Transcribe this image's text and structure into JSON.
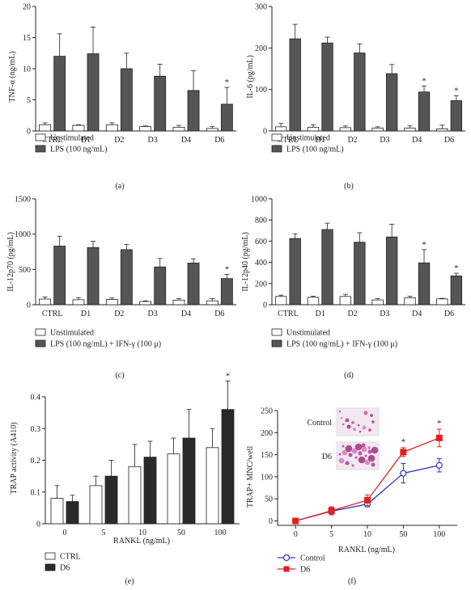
{
  "chart_data": [
    {
      "type": "bar",
      "panel_label": "(a)",
      "ylabel": "TNF-α (ng/mL)",
      "xlabel": "",
      "categories": [
        "CTRL",
        "D1",
        "D2",
        "D3",
        "D4",
        "D6"
      ],
      "ylim": [
        0,
        20
      ],
      "yticks": [
        0,
        5,
        10,
        15,
        20
      ],
      "series": [
        {
          "name": "Unstimulated",
          "values": [
            1.0,
            0.9,
            1.0,
            0.7,
            0.6,
            0.4
          ],
          "errors": [
            0.3,
            0.1,
            0.3,
            0.1,
            0.3,
            0.3
          ],
          "fill": "#ffffff"
        },
        {
          "name": "LPS (100 ng/mL)",
          "values": [
            12.0,
            12.4,
            10.0,
            8.8,
            6.5,
            4.3
          ],
          "errors": [
            3.6,
            4.3,
            2.5,
            1.9,
            3.2,
            2.7
          ],
          "fill": "#555555"
        }
      ],
      "annotations": [
        {
          "category": "D6",
          "series": 1,
          "text": "*"
        }
      ]
    },
    {
      "type": "bar",
      "panel_label": "(b)",
      "ylabel": "IL-6 (pg/mL)",
      "xlabel": "",
      "categories": [
        "CTRL",
        "D1",
        "D2",
        "D3",
        "D4",
        "D6"
      ],
      "ylim": [
        0,
        300
      ],
      "yticks": [
        0,
        100,
        200,
        300
      ],
      "series": [
        {
          "name": "Unstimulated",
          "values": [
            10,
            9,
            8,
            7,
            7,
            5
          ],
          "errors": [
            8,
            6,
            4,
            3,
            5,
            9
          ],
          "fill": "#ffffff"
        },
        {
          "name": "LPS (100 ng/mL)",
          "values": [
            222,
            212,
            188,
            138,
            94,
            73
          ],
          "errors": [
            35,
            14,
            22,
            22,
            14,
            12
          ],
          "fill": "#555555"
        }
      ],
      "annotations": [
        {
          "category": "D4",
          "series": 1,
          "text": "*"
        },
        {
          "category": "D6",
          "series": 1,
          "text": "*"
        }
      ]
    },
    {
      "type": "bar",
      "panel_label": "(c)",
      "ylabel": "IL-12p70 (pg/mL)",
      "xlabel": "",
      "categories": [
        "CTRL",
        "D1",
        "D2",
        "D3",
        "D4",
        "D6"
      ],
      "ylim": [
        0,
        1500
      ],
      "yticks": [
        0,
        500,
        1000,
        1500
      ],
      "series": [
        {
          "name": "Unstimulated",
          "values": [
            80,
            70,
            75,
            45,
            65,
            55
          ],
          "errors": [
            30,
            30,
            20,
            10,
            20,
            30
          ],
          "fill": "#ffffff"
        },
        {
          "name": "LPS (100 ng/mL) + IFN-γ (100 μ)",
          "values": [
            830,
            810,
            780,
            535,
            590,
            370
          ],
          "errors": [
            140,
            90,
            75,
            120,
            60,
            60
          ],
          "fill": "#555555"
        }
      ],
      "annotations": [
        {
          "category": "D6",
          "series": 1,
          "text": "*"
        }
      ]
    },
    {
      "type": "bar",
      "panel_label": "(d)",
      "ylabel": "IL-12p40 (pg/mL)",
      "xlabel": "",
      "categories": [
        "CTRL",
        "D1",
        "D2",
        "D3",
        "D4",
        "D6"
      ],
      "ylim": [
        0,
        1000
      ],
      "yticks": [
        0,
        200,
        400,
        600,
        800,
        1000
      ],
      "series": [
        {
          "name": "Unstimulated",
          "values": [
            78,
            70,
            78,
            45,
            65,
            55
          ],
          "errors": [
            12,
            10,
            20,
            12,
            15,
            5
          ],
          "fill": "#ffffff"
        },
        {
          "name": "LPS (100 ng/mL) + IFN-γ (100 μ)",
          "values": [
            625,
            710,
            590,
            640,
            395,
            272
          ],
          "errors": [
            45,
            60,
            90,
            120,
            125,
            25
          ],
          "fill": "#555555"
        }
      ],
      "annotations": [
        {
          "category": "D4",
          "series": 1,
          "text": "*"
        },
        {
          "category": "D6",
          "series": 1,
          "text": "*"
        }
      ]
    },
    {
      "type": "bar",
      "panel_label": "(e)",
      "ylabel": "TRAP activity (A410)",
      "xlabel": "RANKL (ng/mL)",
      "categories": [
        "0",
        "5",
        "10",
        "50",
        "100"
      ],
      "ylim": [
        0,
        0.4
      ],
      "yticks": [
        0,
        0.1,
        0.2,
        0.3,
        0.4
      ],
      "series": [
        {
          "name": "CTRL",
          "values": [
            0.08,
            0.12,
            0.18,
            0.22,
            0.24
          ],
          "errors": [
            0.04,
            0.03,
            0.07,
            0.05,
            0.06
          ],
          "fill": "#ffffff"
        },
        {
          "name": "D6",
          "values": [
            0.07,
            0.15,
            0.21,
            0.27,
            0.36
          ],
          "errors": [
            0.02,
            0.05,
            0.05,
            0.09,
            0.09
          ],
          "fill": "#2a2a2a"
        }
      ],
      "annotations": [
        {
          "category": "100",
          "series": 1,
          "text": "*"
        }
      ]
    },
    {
      "type": "line",
      "panel_label": "(f)",
      "ylabel": "TRAP+ MNC/well",
      "xlabel": "RANKL (ng/mL)",
      "categories": [
        "0",
        "5",
        "10",
        "50",
        "100"
      ],
      "ylim": [
        -10,
        250
      ],
      "yticks": [
        0,
        50,
        100,
        150,
        200,
        250
      ],
      "series": [
        {
          "name": "Control",
          "values": [
            0,
            22,
            38,
            108,
            126
          ],
          "errors": [
            1,
            8,
            6,
            22,
            15
          ],
          "color": "#3030c0",
          "marker": "circle-open"
        },
        {
          "name": "D6",
          "values": [
            0,
            23,
            47,
            156,
            188
          ],
          "errors": [
            1,
            9,
            12,
            10,
            20
          ],
          "color": "#e02020",
          "marker": "square-filled"
        }
      ],
      "annotations": [
        {
          "category": "50",
          "series": 1,
          "text": "*"
        },
        {
          "category": "100",
          "series": 1,
          "text": "*"
        }
      ],
      "inset_labels": [
        "Control",
        "D6"
      ]
    }
  ]
}
